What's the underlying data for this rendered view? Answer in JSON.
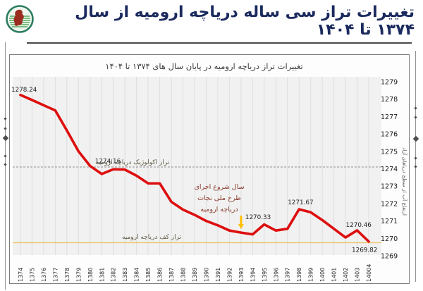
{
  "header": {
    "title": "تغییرات تراز سی ساله دریاچه ارومیه از سال ۱۳۷۴ تا ۱۴۰۴",
    "logo": "lake-urmia-emblem"
  },
  "chart_data": {
    "type": "line",
    "title": "تغییرات تراز دریاچه ارومیه در پایان سال های ۱۳۷۴ تا ۱۴۰۴",
    "x_labels": [
      "1374",
      "1375",
      "1376",
      "1377",
      "1378",
      "1379",
      "1380",
      "1381",
      "1382",
      "1383",
      "1384",
      "1385",
      "1386",
      "1387",
      "1388",
      "1389",
      "1390",
      "1391",
      "1392",
      "1393",
      "1394",
      "1395",
      "1396",
      "1397",
      "1398",
      "1399",
      "1400",
      "1401",
      "1402",
      "1403",
      "14004"
    ],
    "values": [
      1278.24,
      1277.95,
      1277.65,
      1277.35,
      1276.2,
      1275.0,
      1274.16,
      1273.7,
      1273.97,
      1273.95,
      1273.6,
      1273.16,
      1273.16,
      1272.1,
      1271.65,
      1271.35,
      1271.0,
      1270.75,
      1270.45,
      1270.33,
      1270.23,
      1270.8,
      1270.45,
      1270.55,
      1271.67,
      1271.5,
      1271.05,
      1270.55,
      1270.05,
      1270.46,
      1269.82
    ],
    "ylim": [
      1269,
      1279
    ],
    "y_ticks": [
      1279,
      1278,
      1277,
      1276,
      1275,
      1274,
      1273,
      1272,
      1271,
      1270,
      1269
    ],
    "y_axis_label": "ارتفاع آب از سطح دریاهای آزاد",
    "line_color": "#dd0e0e",
    "grid": true,
    "legend": "none",
    "point_labels": [
      {
        "index": 0,
        "text": "1278.24"
      },
      {
        "index": 6,
        "text": "1274.16"
      },
      {
        "index": 19,
        "text": "1270.33"
      },
      {
        "index": 24,
        "text": "1271.67"
      },
      {
        "index": 29,
        "text": "1270.46"
      },
      {
        "index": 30,
        "text": "1269.82"
      }
    ],
    "reference_lines": [
      {
        "id": "ecological",
        "label": "تراز اکولوژیک دریاچه ارومیه",
        "value": 1274.1,
        "color": "#a3a3a3",
        "dashed": true,
        "label_color": "#605c45"
      },
      {
        "id": "lakebed",
        "label": "تراز کف دریاچه ارومیه",
        "value": 1269.75,
        "color": "#eabf5e",
        "dashed": false,
        "label_color": "#605c45"
      }
    ],
    "annotation": {
      "lines": [
        "سال شروع اجرای",
        "طرح ملی نجات",
        "دریاچه ارومیه"
      ],
      "color": "#8a3a2c",
      "arrow_color": "#ffc000",
      "arrow_target_index": 19
    }
  }
}
